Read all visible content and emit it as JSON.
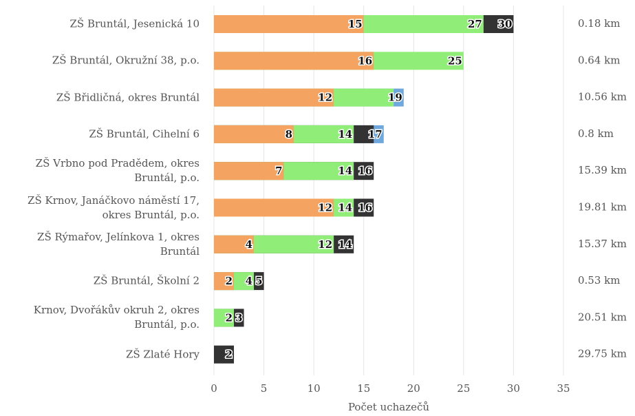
{
  "chart_data": {
    "type": "bar",
    "orientation": "horizontal",
    "overlap": true,
    "x_label": "Počet uchazečů",
    "categories": [
      "ZŠ Bruntál, Jesenická 10",
      "ZŠ Bruntál, Okružní 38, p.o.",
      "ZŠ Břidličná, okres Bruntál",
      "ZŠ Bruntál, Cihelní 6",
      "ZŠ Vrbno pod Pradědem, okres\nBruntál, p.o.",
      "ZŠ Krnov, Janáčkovo náměstí 17,\nokres Bruntál, p.o.",
      "ZŠ Rýmařov, Jelínkova 1, okres\nBruntál",
      "ZŠ Bruntál, Školní 2",
      "Krnov, Dvořákův okruh 2, okres\nBruntál, p.o.",
      "ZŠ Zlaté Hory"
    ],
    "distances": [
      "0.18 km",
      "0.64 km",
      "10.56 km",
      "0.8 km",
      "15.39 km",
      "19.81 km",
      "15.37 km",
      "0.53 km",
      "20.51 km",
      "29.75 km"
    ],
    "series": [
      {
        "color": "#6fa8dc",
        "values": [
          null,
          null,
          19,
          17,
          null,
          null,
          null,
          null,
          null,
          null
        ]
      },
      {
        "color": "#333333",
        "values": [
          30,
          null,
          null,
          16,
          16,
          16,
          14,
          5,
          3,
          2
        ],
        "value_labels": [
          "30",
          null,
          null,
          null,
          "16",
          "16",
          "14",
          "5",
          "3",
          "2"
        ]
      },
      {
        "color": "#90ee78",
        "values": [
          27,
          25,
          18,
          14,
          14,
          14,
          12,
          4,
          2,
          null
        ],
        "value_labels": [
          "27",
          "25",
          null,
          "14",
          "14",
          "14",
          "12",
          "4",
          "2",
          null
        ]
      },
      {
        "color": "#f4a460",
        "values": [
          15,
          16,
          12,
          8,
          7,
          12,
          4,
          2,
          null,
          null
        ]
      }
    ],
    "xlim": [
      0,
      35
    ],
    "xticks": [
      0,
      5,
      10,
      15,
      20,
      25,
      30,
      35
    ],
    "grid": true
  }
}
